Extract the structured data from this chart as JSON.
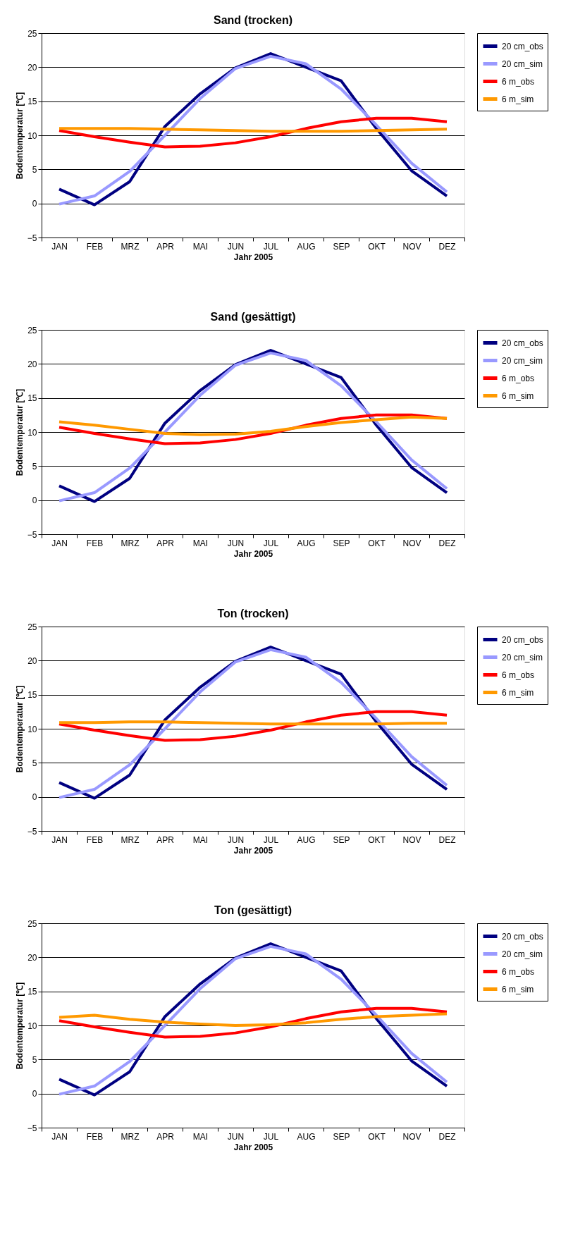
{
  "chart_data": [
    {
      "type": "line",
      "title": "Sand (trocken)",
      "xlabel": "Jahr 2005",
      "ylabel": "Bodentemperatur [℃]",
      "categories": [
        "JAN",
        "FEB",
        "MRZ",
        "APR",
        "MAI",
        "JUN",
        "JUL",
        "AUG",
        "SEP",
        "OKT",
        "NOV",
        "DEZ"
      ],
      "ylim": [
        -5,
        25
      ],
      "yticks": [
        -5,
        0,
        5,
        10,
        15,
        20,
        25
      ],
      "grid": "y",
      "legend": "right",
      "line_style": "solid",
      "series": [
        {
          "name": "20 cm_obs",
          "color": "#000080",
          "values": [
            2.1,
            -0.2,
            3.2,
            11.3,
            16.1,
            19.9,
            22.0,
            20.0,
            18.0,
            11.0,
            4.8,
            1.1
          ]
        },
        {
          "name": "20 cm_sim",
          "color": "#9999ff",
          "values": [
            -0.1,
            1.1,
            4.7,
            10.0,
            15.4,
            19.8,
            21.6,
            20.5,
            16.8,
            11.5,
            5.9,
            1.7
          ]
        },
        {
          "name": "6 m_obs",
          "color": "#ff0000",
          "values": [
            10.7,
            9.8,
            9.0,
            8.3,
            8.4,
            8.9,
            9.8,
            11.0,
            12.0,
            12.5,
            12.5,
            12.0
          ]
        },
        {
          "name": "6 m_sim",
          "color": "#ff9900",
          "values": [
            11.0,
            11.0,
            11.0,
            10.9,
            10.8,
            10.7,
            10.6,
            10.6,
            10.6,
            10.7,
            10.8,
            10.9
          ]
        }
      ]
    },
    {
      "type": "line",
      "title": "Sand (gesättigt)",
      "xlabel": "Jahr 2005",
      "ylabel": "Bodentemperatur [℃]",
      "categories": [
        "JAN",
        "FEB",
        "MRZ",
        "APR",
        "MAI",
        "JUN",
        "JUL",
        "AUG",
        "SEP",
        "OKT",
        "NOV",
        "DEZ"
      ],
      "ylim": [
        -5,
        25
      ],
      "yticks": [
        -5,
        0,
        5,
        10,
        15,
        20,
        25
      ],
      "grid": "y",
      "legend": "right",
      "line_style": "solid",
      "series": [
        {
          "name": "20 cm_obs",
          "color": "#000080",
          "values": [
            2.1,
            -0.2,
            3.2,
            11.3,
            16.1,
            19.9,
            22.0,
            20.0,
            18.0,
            11.0,
            4.8,
            1.1
          ]
        },
        {
          "name": "20 cm_sim",
          "color": "#9999ff",
          "values": [
            -0.1,
            1.1,
            4.7,
            10.0,
            15.4,
            19.8,
            21.6,
            20.5,
            16.8,
            11.5,
            5.9,
            1.7
          ]
        },
        {
          "name": "6 m_obs",
          "color": "#ff0000",
          "values": [
            10.7,
            9.8,
            9.0,
            8.3,
            8.4,
            8.9,
            9.8,
            11.0,
            12.0,
            12.5,
            12.5,
            12.0
          ]
        },
        {
          "name": "6 m_sim",
          "color": "#ff9900",
          "values": [
            11.5,
            11.0,
            10.4,
            9.8,
            9.6,
            9.7,
            10.1,
            10.8,
            11.4,
            11.8,
            12.2,
            12.0
          ]
        }
      ]
    },
    {
      "type": "line",
      "title": "Ton (trocken)",
      "xlabel": "Jahr 2005",
      "ylabel": "Bodentemperatur [℃]",
      "categories": [
        "JAN",
        "FEB",
        "MRZ",
        "APR",
        "MAI",
        "JUN",
        "JUL",
        "AUG",
        "SEP",
        "OKT",
        "NOV",
        "DEZ"
      ],
      "ylim": [
        -5,
        25
      ],
      "yticks": [
        -5,
        0,
        5,
        10,
        15,
        20,
        25
      ],
      "grid": "y",
      "legend": "right",
      "line_style": "solid",
      "series": [
        {
          "name": "20 cm_obs",
          "color": "#000080",
          "values": [
            2.1,
            -0.2,
            3.2,
            11.3,
            16.1,
            19.9,
            22.0,
            20.0,
            18.0,
            11.0,
            4.8,
            1.1
          ]
        },
        {
          "name": "20 cm_sim",
          "color": "#9999ff",
          "values": [
            -0.1,
            1.1,
            4.7,
            10.0,
            15.4,
            19.8,
            21.6,
            20.5,
            16.8,
            11.5,
            5.9,
            1.7
          ]
        },
        {
          "name": "6 m_obs",
          "color": "#ff0000",
          "values": [
            10.7,
            9.8,
            9.0,
            8.3,
            8.4,
            8.9,
            9.8,
            11.0,
            12.0,
            12.5,
            12.5,
            12.0
          ]
        },
        {
          "name": "6 m_sim",
          "color": "#ff9900",
          "values": [
            10.9,
            10.9,
            11.0,
            11.0,
            10.9,
            10.8,
            10.7,
            10.7,
            10.7,
            10.7,
            10.8,
            10.8
          ]
        }
      ]
    },
    {
      "type": "line",
      "title": "Ton (gesättigt)",
      "xlabel": "Jahr 2005",
      "ylabel": "Bodentemperatur [℃]",
      "categories": [
        "JAN",
        "FEB",
        "MRZ",
        "APR",
        "MAI",
        "JUN",
        "JUL",
        "AUG",
        "SEP",
        "OKT",
        "NOV",
        "DEZ"
      ],
      "ylim": [
        -5,
        25
      ],
      "yticks": [
        -5,
        0,
        5,
        10,
        15,
        20,
        25
      ],
      "grid": "y",
      "legend": "right",
      "line_style": "solid",
      "series": [
        {
          "name": "20 cm_obs",
          "color": "#000080",
          "values": [
            2.1,
            -0.2,
            3.2,
            11.3,
            16.1,
            19.9,
            22.0,
            20.0,
            18.0,
            11.0,
            4.8,
            1.1
          ]
        },
        {
          "name": "20 cm_sim",
          "color": "#9999ff",
          "values": [
            -0.1,
            1.1,
            4.7,
            10.0,
            15.4,
            19.8,
            21.6,
            20.5,
            16.8,
            11.5,
            5.9,
            1.7
          ]
        },
        {
          "name": "6 m_obs",
          "color": "#ff0000",
          "values": [
            10.7,
            9.8,
            9.0,
            8.3,
            8.4,
            8.9,
            9.8,
            11.0,
            12.0,
            12.5,
            12.5,
            12.0
          ]
        },
        {
          "name": "6 m_sim",
          "color": "#ff9900",
          "values": [
            11.2,
            11.5,
            10.9,
            10.5,
            10.2,
            10.0,
            10.1,
            10.4,
            10.9,
            11.3,
            11.5,
            11.7
          ]
        }
      ]
    }
  ]
}
